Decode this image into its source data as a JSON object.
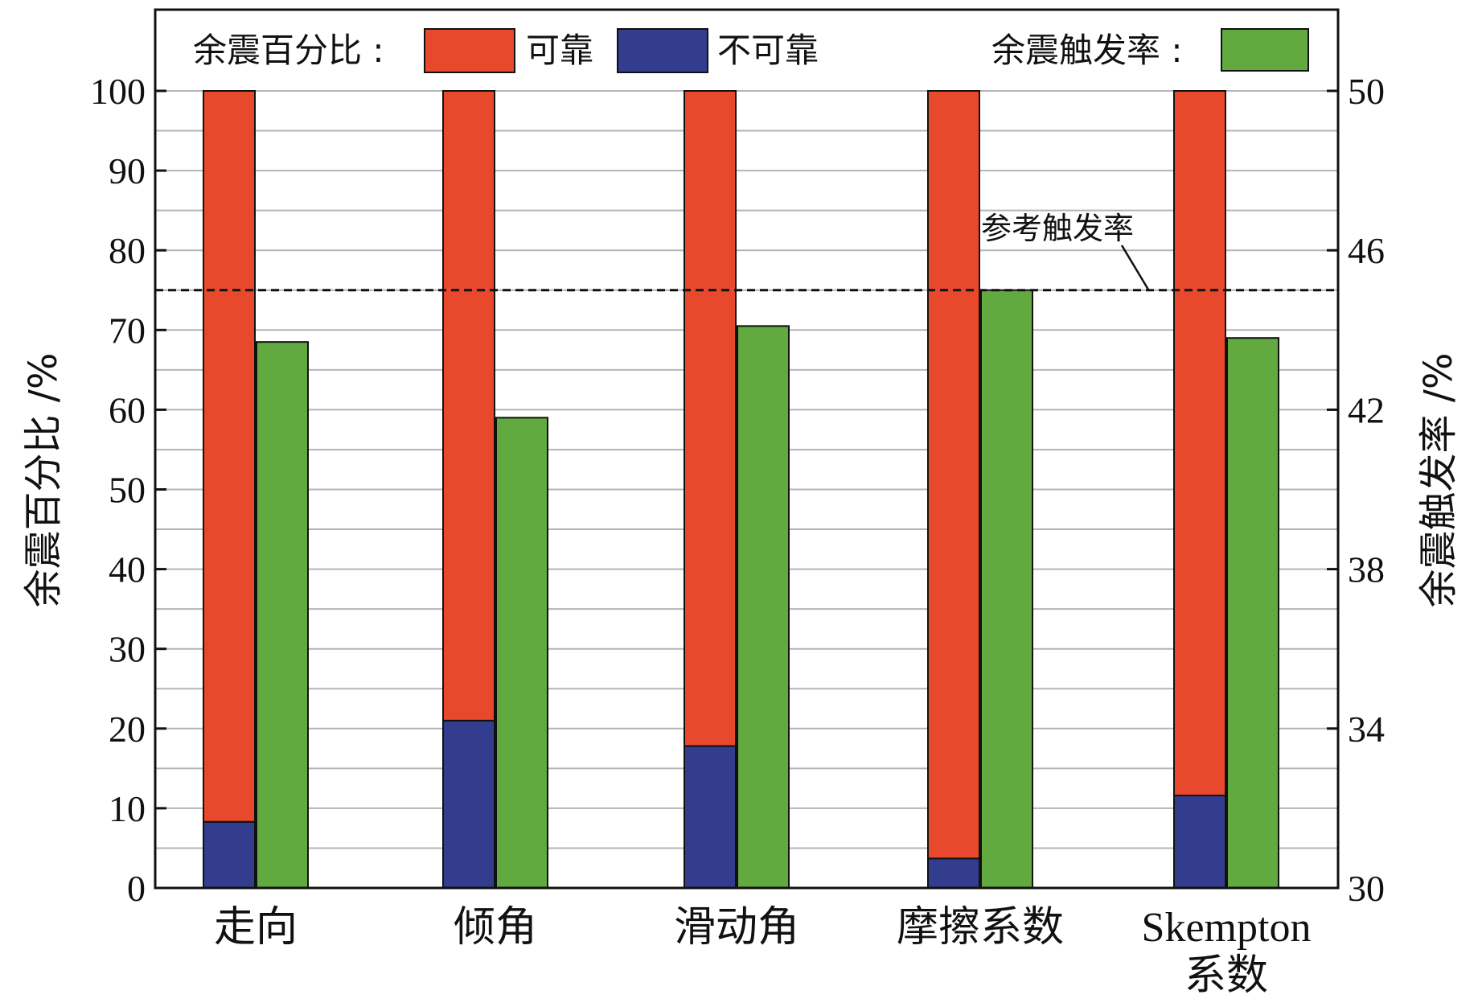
{
  "chart_data": {
    "type": "bar",
    "categories": [
      "走向",
      "倾角",
      "滑动角",
      "摩擦系数",
      "Skempton系数"
    ],
    "category_lines": [
      [
        "走向"
      ],
      [
        "倾角"
      ],
      [
        "滑动角"
      ],
      [
        "摩擦系数"
      ],
      [
        "Skempton",
        "系数"
      ]
    ],
    "series": [
      {
        "name": "可靠",
        "axis": "left",
        "stack": "percent",
        "values": [
          91.7,
          79,
          82.2,
          96.3,
          88.4
        ],
        "color": "#e8482c"
      },
      {
        "name": "不可靠",
        "axis": "left",
        "stack": "percent",
        "values": [
          8.3,
          21,
          17.8,
          3.7,
          11.6
        ],
        "color": "#333d8e"
      },
      {
        "name": "",
        "axis": "right",
        "values": [
          43.7,
          41.8,
          44.1,
          45,
          43.8
        ],
        "color": "#62a93f"
      }
    ],
    "reference_line": {
      "label": "参考触发率",
      "value": 45,
      "axis": "right"
    },
    "y_left": {
      "label": "余震百分比 /%",
      "ylim": [
        0,
        100
      ],
      "ticks": [
        0,
        10,
        20,
        30,
        40,
        50,
        60,
        70,
        80,
        90,
        100
      ]
    },
    "y_right": {
      "label": "余震触发率 /%",
      "ylim": [
        30,
        50
      ],
      "ticks": [
        30,
        34,
        38,
        42,
        46,
        50
      ]
    },
    "legend": {
      "group1_title": "余震百分比 :",
      "group1_items": [
        "可靠",
        "不可靠"
      ],
      "group2_title": "余震触发率 :"
    },
    "grid": true
  }
}
